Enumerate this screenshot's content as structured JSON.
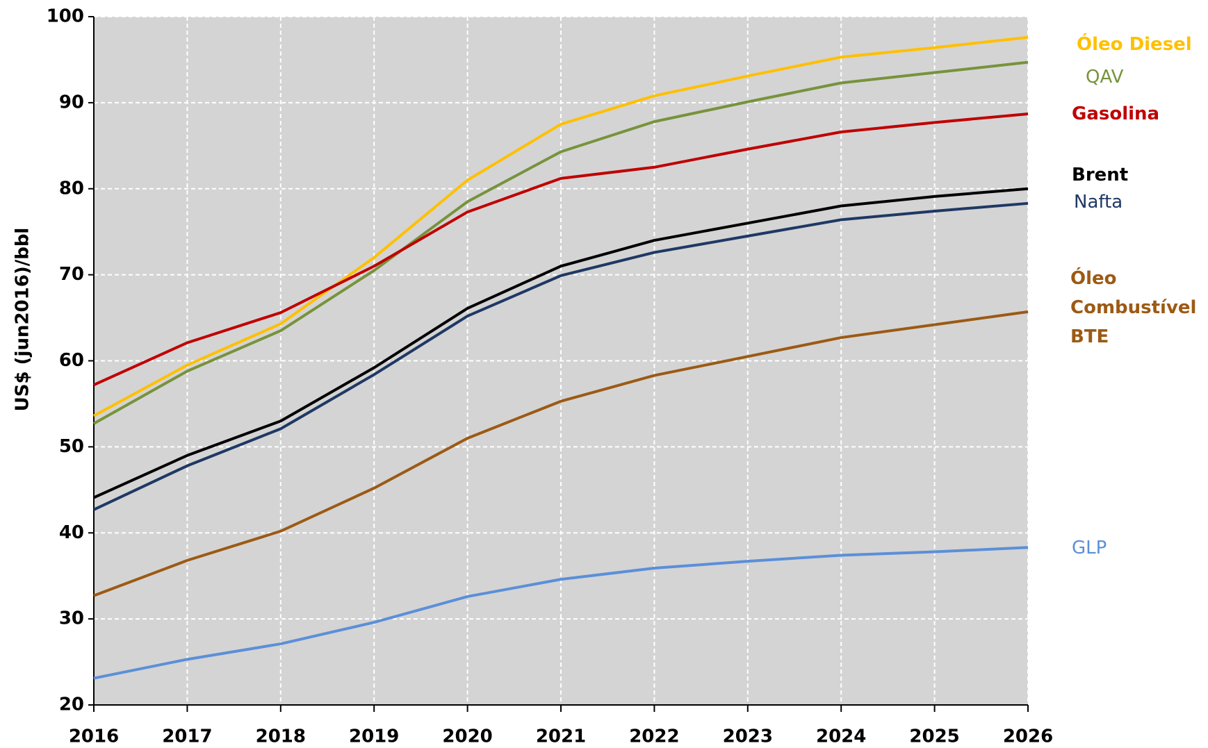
{
  "chart_data": {
    "type": "line",
    "y_label": "US$ (jun2016)/bbl",
    "x": [
      2016,
      2017,
      2018,
      2019,
      2020,
      2021,
      2022,
      2023,
      2024,
      2025,
      2026
    ],
    "xlim": [
      2016,
      2026
    ],
    "xticks": [
      2016,
      2017,
      2018,
      2019,
      2020,
      2021,
      2022,
      2023,
      2024,
      2025,
      2026
    ],
    "ylim": [
      20,
      100
    ],
    "yticks": [
      20,
      30,
      40,
      50,
      60,
      70,
      80,
      90,
      100
    ],
    "grid": true,
    "series": [
      {
        "name": "Óleo Diesel",
        "color": "#ffc000",
        "values": [
          53.6,
          59.5,
          64.3,
          72.0,
          81.0,
          87.5,
          90.8,
          93.1,
          95.3,
          96.4,
          97.6
        ]
      },
      {
        "name": "QAV",
        "color": "#77933c",
        "values": [
          52.7,
          58.8,
          63.5,
          70.5,
          78.5,
          84.3,
          87.8,
          90.1,
          92.3,
          93.5,
          94.7
        ]
      },
      {
        "name": "Gasolina",
        "color": "#c00000",
        "values": [
          57.2,
          62.1,
          65.6,
          71.0,
          77.3,
          81.2,
          82.5,
          84.6,
          86.6,
          87.7,
          88.7
        ]
      },
      {
        "name": "Brent",
        "color": "#000000",
        "values": [
          44.1,
          49.0,
          53.0,
          59.2,
          66.1,
          71.0,
          74.0,
          76.0,
          78.0,
          79.1,
          80.0
        ]
      },
      {
        "name": "Nafta",
        "color": "#1f3864",
        "values": [
          42.7,
          47.8,
          52.1,
          58.4,
          65.2,
          69.9,
          72.6,
          74.5,
          76.4,
          77.4,
          78.3
        ]
      },
      {
        "name": "Óleo Combustível BTE",
        "color": "#9c5a14",
        "values": [
          32.7,
          36.8,
          40.2,
          45.2,
          51.0,
          55.3,
          58.3,
          60.5,
          62.7,
          64.2,
          65.7
        ]
      },
      {
        "name": "GLP",
        "color": "#5b8fd8",
        "values": [
          23.1,
          25.3,
          27.1,
          29.6,
          32.6,
          34.6,
          35.9,
          36.7,
          37.4,
          37.8,
          38.3
        ]
      }
    ]
  }
}
